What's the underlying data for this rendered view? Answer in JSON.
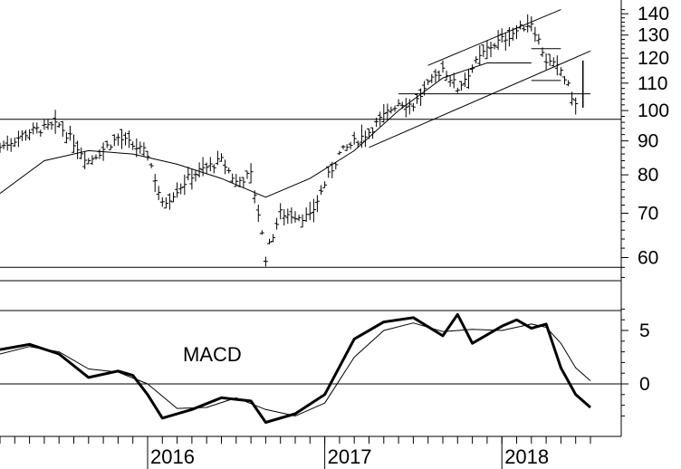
{
  "chart_data": [
    {
      "type": "ohlc",
      "scale": "log",
      "ylim": [
        54,
        145
      ],
      "y_ticks": [
        "140",
        "130",
        "120",
        "110",
        "100",
        "90",
        "80",
        "70",
        "60"
      ],
      "x_ticks": [
        "2016",
        "2017",
        "2018"
      ],
      "x_range": [
        "2015-03",
        "2018-05"
      ],
      "horizontal_levels": [
        97,
        58
      ],
      "moving_average": [
        {
          "x": "2015-03",
          "y": 75
        },
        {
          "x": "2015-06",
          "y": 84
        },
        {
          "x": "2015-09",
          "y": 87
        },
        {
          "x": "2015-12",
          "y": 86
        },
        {
          "x": "2016-03",
          "y": 83
        },
        {
          "x": "2016-06",
          "y": 79
        },
        {
          "x": "2016-09",
          "y": 74
        },
        {
          "x": "2016-12",
          "y": 79
        },
        {
          "x": "2017-03",
          "y": 87
        },
        {
          "x": "2017-06",
          "y": 100
        },
        {
          "x": "2017-09",
          "y": 112
        },
        {
          "x": "2017-12",
          "y": 118
        },
        {
          "x": "2018-03",
          "y": 118
        }
      ],
      "price_path": [
        {
          "x": "2015-03",
          "y": 88
        },
        {
          "x": "2015-05",
          "y": 93
        },
        {
          "x": "2015-07",
          "y": 95
        },
        {
          "x": "2015-09",
          "y": 84
        },
        {
          "x": "2015-11",
          "y": 91
        },
        {
          "x": "2016-01",
          "y": 86
        },
        {
          "x": "2016-02",
          "y": 72
        },
        {
          "x": "2016-04",
          "y": 80
        },
        {
          "x": "2016-06",
          "y": 84
        },
        {
          "x": "2016-07",
          "y": 78
        },
        {
          "x": "2016-08",
          "y": 80
        },
        {
          "x": "2016-09",
          "y": 60
        },
        {
          "x": "2016-10",
          "y": 70
        },
        {
          "x": "2016-12",
          "y": 69
        },
        {
          "x": "2017-02",
          "y": 86
        },
        {
          "x": "2017-04",
          "y": 93
        },
        {
          "x": "2017-06",
          "y": 103
        },
        {
          "x": "2017-07",
          "y": 102
        },
        {
          "x": "2017-09",
          "y": 116
        },
        {
          "x": "2017-10",
          "y": 108
        },
        {
          "x": "2017-12",
          "y": 124
        },
        {
          "x": "2018-02",
          "y": 132
        },
        {
          "x": "2018-03",
          "y": 136
        },
        {
          "x": "2018-04",
          "y": 119
        },
        {
          "x": "2018-05",
          "y": 115
        },
        {
          "x": "2018-06",
          "y": 102
        }
      ],
      "trendlines": [
        {
          "from": {
            "x": "2017-04",
            "y": 88
          },
          "to": {
            "x": "2018-07",
            "y": 123
          }
        },
        {
          "from": {
            "x": "2017-08",
            "y": 117
          },
          "to": {
            "x": "2018-05",
            "y": 142
          }
        }
      ],
      "support_levels": [
        {
          "from": "2017-06",
          "to": "2018-07",
          "y": 106
        },
        {
          "from": "2018-03",
          "to": "2018-05",
          "y": 124
        },
        {
          "from": "2018-03",
          "to": "2018-05",
          "y": 111
        }
      ]
    },
    {
      "type": "line",
      "title": "MACD",
      "y_ticks": [
        "5",
        "0"
      ],
      "ylim": [
        -4,
        8
      ],
      "series": [
        {
          "role": "macd",
          "points": [
            {
              "x": "2015-03",
              "y": 3.2
            },
            {
              "x": "2015-05",
              "y": 3.7
            },
            {
              "x": "2015-07",
              "y": 2.8
            },
            {
              "x": "2015-09",
              "y": 0.6
            },
            {
              "x": "2015-11",
              "y": 1.2
            },
            {
              "x": "2015-12",
              "y": 0.8
            },
            {
              "x": "2016-01",
              "y": -1.0
            },
            {
              "x": "2016-02",
              "y": -3.2
            },
            {
              "x": "2016-04",
              "y": -2.4
            },
            {
              "x": "2016-06",
              "y": -1.3
            },
            {
              "x": "2016-08",
              "y": -1.6
            },
            {
              "x": "2016-09",
              "y": -3.6
            },
            {
              "x": "2016-11",
              "y": -2.8
            },
            {
              "x": "2017-01",
              "y": -1.0
            },
            {
              "x": "2017-03",
              "y": 4.2
            },
            {
              "x": "2017-05",
              "y": 5.8
            },
            {
              "x": "2017-07",
              "y": 6.2
            },
            {
              "x": "2017-09",
              "y": 4.5
            },
            {
              "x": "2017-10",
              "y": 6.5
            },
            {
              "x": "2017-11",
              "y": 3.8
            },
            {
              "x": "2018-01",
              "y": 5.4
            },
            {
              "x": "2018-02",
              "y": 6.0
            },
            {
              "x": "2018-03",
              "y": 5.2
            },
            {
              "x": "2018-04",
              "y": 5.6
            },
            {
              "x": "2018-05",
              "y": 1.5
            },
            {
              "x": "2018-06",
              "y": -1.0
            },
            {
              "x": "2018-07",
              "y": -2.2
            }
          ]
        },
        {
          "role": "signal",
          "points": [
            {
              "x": "2015-03",
              "y": 2.8
            },
            {
              "x": "2015-05",
              "y": 3.5
            },
            {
              "x": "2015-07",
              "y": 3.0
            },
            {
              "x": "2015-09",
              "y": 1.4
            },
            {
              "x": "2015-11",
              "y": 1.1
            },
            {
              "x": "2016-01",
              "y": 0.0
            },
            {
              "x": "2016-03",
              "y": -2.3
            },
            {
              "x": "2016-05",
              "y": -2.2
            },
            {
              "x": "2016-07",
              "y": -1.3
            },
            {
              "x": "2016-09",
              "y": -2.4
            },
            {
              "x": "2016-11",
              "y": -3.0
            },
            {
              "x": "2017-01",
              "y": -1.8
            },
            {
              "x": "2017-03",
              "y": 2.5
            },
            {
              "x": "2017-05",
              "y": 5.0
            },
            {
              "x": "2017-07",
              "y": 5.7
            },
            {
              "x": "2017-09",
              "y": 4.9
            },
            {
              "x": "2017-11",
              "y": 5.1
            },
            {
              "x": "2018-01",
              "y": 5.0
            },
            {
              "x": "2018-03",
              "y": 5.6
            },
            {
              "x": "2018-04",
              "y": 5.3
            },
            {
              "x": "2018-05",
              "y": 3.8
            },
            {
              "x": "2018-06",
              "y": 1.5
            },
            {
              "x": "2018-07",
              "y": 0.3
            }
          ]
        }
      ],
      "zero_line": 0
    }
  ]
}
